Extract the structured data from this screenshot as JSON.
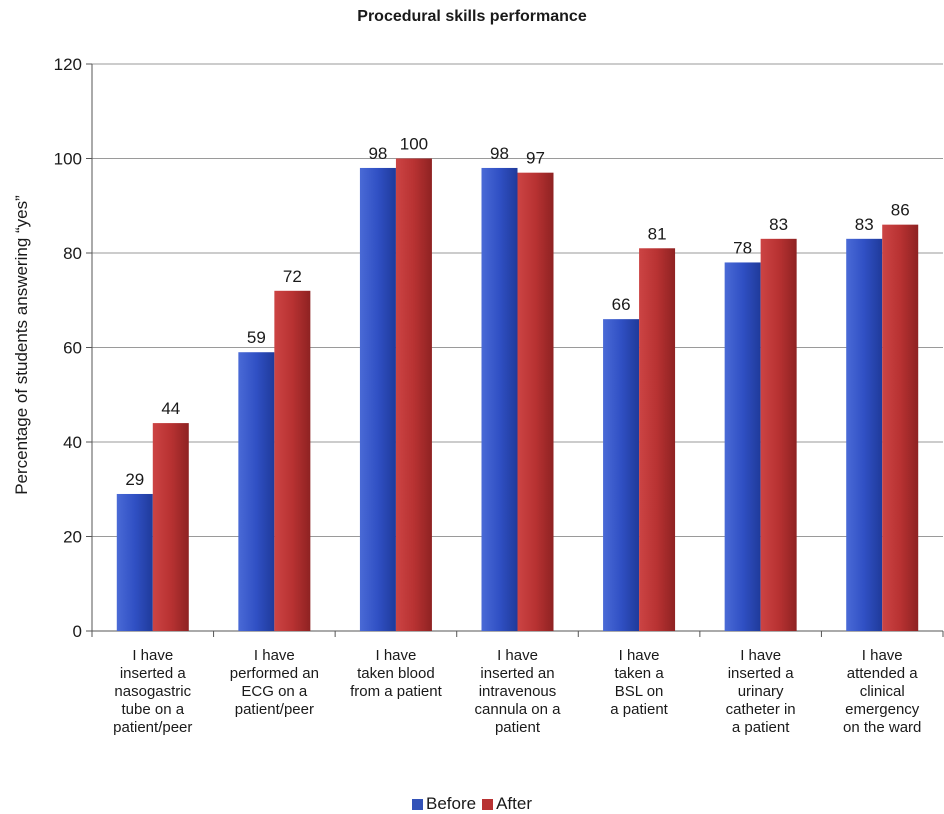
{
  "chart_data": {
    "type": "bar",
    "title": "Procedural skills performance",
    "xlabel": "",
    "ylabel": "Percentage of students answering “yes”",
    "ylim": [
      0,
      120
    ],
    "yticks": [
      0,
      20,
      40,
      60,
      80,
      100,
      120
    ],
    "grid": true,
    "legend_position": "bottom",
    "categories": [
      [
        "I have",
        "inserted a",
        "nasogastric",
        "tube on a",
        "patient/peer"
      ],
      [
        "I have",
        "performed an",
        "ECG on a",
        "patient/peer"
      ],
      [
        "I have",
        "taken blood",
        "from a patient"
      ],
      [
        "I have",
        "inserted an",
        "intravenous",
        "cannula on a",
        "patient"
      ],
      [
        "I have",
        "taken a",
        "BSL on",
        "a patient"
      ],
      [
        "I have",
        "inserted a",
        "urinary",
        "catheter in",
        "a patient"
      ],
      [
        "I have",
        "attended a",
        "clinical",
        "emergency",
        "on the ward"
      ]
    ],
    "series": [
      {
        "name": "Before",
        "color": "#3252b8",
        "values": [
          29,
          59,
          98,
          98,
          66,
          78,
          83
        ]
      },
      {
        "name": "After",
        "color": "#b83232",
        "values": [
          44,
          72,
          100,
          97,
          81,
          83,
          86
        ]
      }
    ]
  }
}
